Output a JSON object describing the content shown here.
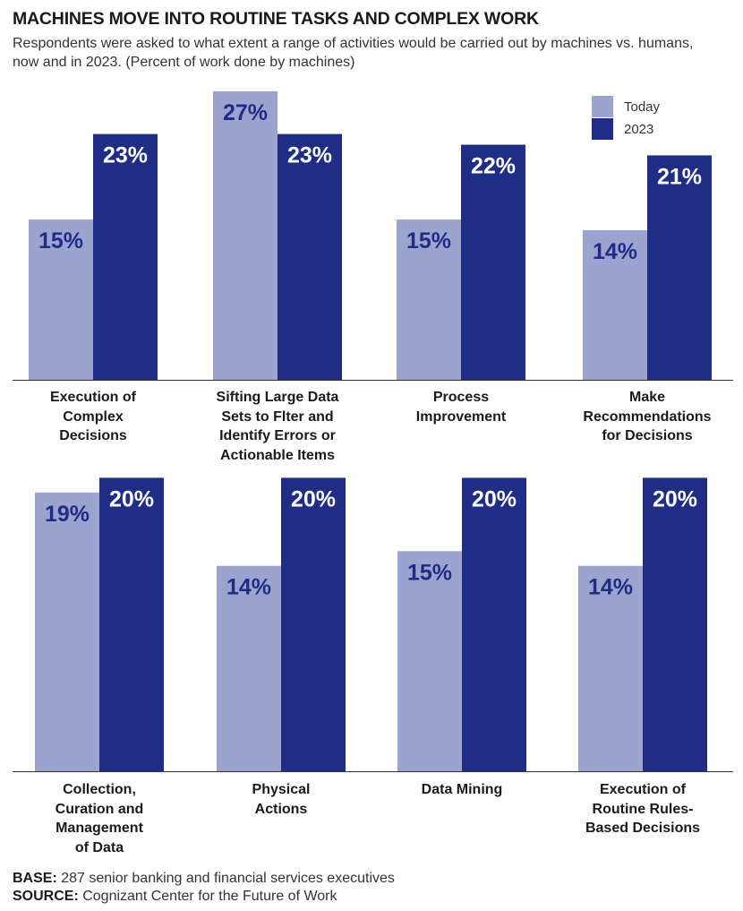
{
  "title": "MACHINES MOVE INTO ROUTINE TASKS AND COMPLEX WORK",
  "subtitle": "Respondents were asked to what extent a range of activities would be carried out by machines vs. humans, now and in 2023. (Percent of work done by machines)",
  "colors": {
    "today": "#9da3cf",
    "y2023": "#1f2d87"
  },
  "chart_data": [
    {
      "type": "bar",
      "categories": [
        "Execution of Complex Decisions",
        "Sifting Large Data Sets to Flter and Identify Errors or Actionable Items",
        "Process Improvement",
        "Make Recommendations for Decisions"
      ],
      "series": [
        {
          "name": "Today",
          "values": [
            15,
            27,
            15,
            14
          ],
          "labels": [
            "15%",
            "27%",
            "15%",
            "14%"
          ]
        },
        {
          "name": "2023",
          "values": [
            23,
            23,
            22,
            21
          ],
          "labels": [
            "23%",
            "23%",
            "22%",
            "21%"
          ]
        }
      ],
      "ylim": [
        0,
        27
      ],
      "legend": "top-right"
    },
    {
      "type": "bar",
      "categories": [
        "Collection, Curation and Management of Data",
        "Physical Actions",
        "Data Mining",
        "Execution of Routine Rules-Based Decisions"
      ],
      "series": [
        {
          "name": "Today",
          "values": [
            19,
            14,
            15,
            14
          ],
          "labels": [
            "19%",
            "14%",
            "15%",
            "14%"
          ]
        },
        {
          "name": "2023",
          "values": [
            20,
            20,
            20,
            20
          ],
          "labels": [
            "20%",
            "20%",
            "20%",
            "20%"
          ]
        }
      ],
      "ylim": [
        0,
        20
      ]
    }
  ],
  "legend": {
    "today_label": "Today",
    "y2023_label": "2023"
  },
  "footer": {
    "base_label": "BASE:",
    "base_text": " 287 senior banking and financial services executives",
    "source_label": "SOURCE:",
    "source_text": " Cognizant Center for the Future of Work"
  }
}
